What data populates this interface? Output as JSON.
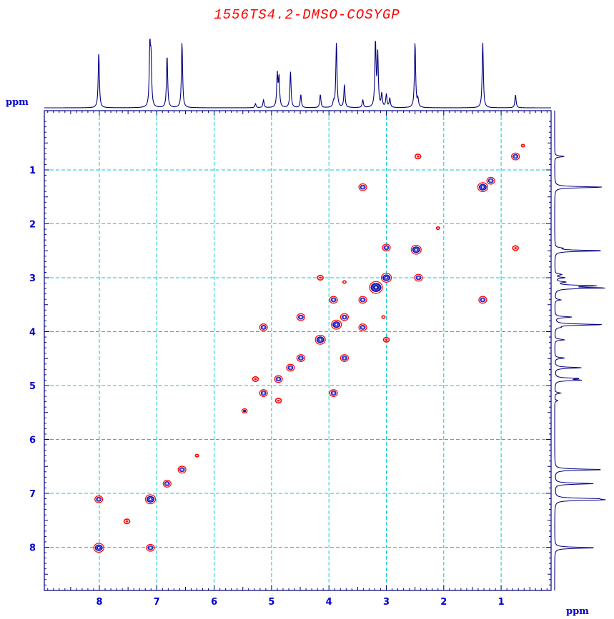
{
  "title": "1556TS4.2-DMSO-COSYGP",
  "chart_data": {
    "type": "heatmap",
    "subtype": "2D COSY NMR contour plot",
    "title": "1556TS4.2-DMSO-COSYGP",
    "x_unit_label": "ppm",
    "y_unit_label": "ppm",
    "x_axis": {
      "range": [
        0.0,
        8.9
      ],
      "reversed": true,
      "ticks": [
        8,
        7,
        6,
        5,
        4,
        3,
        2,
        1
      ]
    },
    "y_axis": {
      "range": [
        0.0,
        8.9
      ],
      "reversed": true,
      "ticks": [
        1,
        2,
        3,
        4,
        5,
        6,
        7,
        8
      ]
    },
    "grid": true,
    "colors": {
      "frame": "#000080",
      "grid": "#00cccc",
      "contour_positive": "#1a1aa8",
      "contour_negative": "#ff0000",
      "title": "#ff0000",
      "labels": "#0000cc"
    },
    "projection_peaks_ppm": [
      {
        "shift": 8.01,
        "height": 0.85
      },
      {
        "shift": 7.12,
        "height": 0.9
      },
      {
        "shift": 7.1,
        "height": 0.7
      },
      {
        "shift": 6.82,
        "height": 0.8
      },
      {
        "shift": 6.56,
        "height": 1.0
      },
      {
        "shift": 5.28,
        "height": 0.06
      },
      {
        "shift": 5.14,
        "height": 0.12
      },
      {
        "shift": 4.9,
        "height": 0.5
      },
      {
        "shift": 4.87,
        "height": 0.45
      },
      {
        "shift": 4.67,
        "height": 0.55
      },
      {
        "shift": 4.49,
        "height": 0.2
      },
      {
        "shift": 4.15,
        "height": 0.2
      },
      {
        "shift": 3.92,
        "height": 0.08
      },
      {
        "shift": 3.87,
        "height": 1.0
      },
      {
        "shift": 3.73,
        "height": 0.35
      },
      {
        "shift": 3.41,
        "height": 0.12
      },
      {
        "shift": 3.19,
        "height": 1.0
      },
      {
        "shift": 3.15,
        "height": 0.8
      },
      {
        "shift": 3.08,
        "height": 0.2
      },
      {
        "shift": 3.0,
        "height": 0.2
      },
      {
        "shift": 2.94,
        "height": 0.14
      },
      {
        "shift": 2.5,
        "height": 1.0
      },
      {
        "shift": 2.45,
        "height": 0.12
      },
      {
        "shift": 1.32,
        "height": 1.0
      },
      {
        "shift": 0.75,
        "height": 0.2
      }
    ],
    "cross_peaks": [
      {
        "x": 8.01,
        "y": 8.01,
        "kind": "diagonal",
        "size": 2
      },
      {
        "x": 7.11,
        "y": 7.11,
        "kind": "diagonal",
        "size": 2
      },
      {
        "x": 6.82,
        "y": 6.82,
        "kind": "diagonal",
        "size": 1
      },
      {
        "x": 6.56,
        "y": 6.56,
        "kind": "diagonal",
        "size": 1
      },
      {
        "x": 8.01,
        "y": 7.11,
        "kind": "cross",
        "size": 1
      },
      {
        "x": 7.11,
        "y": 8.01,
        "kind": "cross",
        "size": 1
      },
      {
        "x": 5.14,
        "y": 5.14,
        "kind": "diagonal",
        "size": 1
      },
      {
        "x": 4.88,
        "y": 4.88,
        "kind": "diagonal",
        "size": 1
      },
      {
        "x": 4.67,
        "y": 4.67,
        "kind": "diagonal",
        "size": 1
      },
      {
        "x": 4.49,
        "y": 4.49,
        "kind": "diagonal",
        "size": 1
      },
      {
        "x": 4.15,
        "y": 4.15,
        "kind": "diagonal",
        "size": 2
      },
      {
        "x": 3.87,
        "y": 3.87,
        "kind": "diagonal",
        "size": 2
      },
      {
        "x": 3.73,
        "y": 3.73,
        "kind": "diagonal",
        "size": 1
      },
      {
        "x": 3.41,
        "y": 3.41,
        "kind": "diagonal",
        "size": 1
      },
      {
        "x": 3.18,
        "y": 3.18,
        "kind": "diagonal",
        "size": 3
      },
      {
        "x": 3.0,
        "y": 3.0,
        "kind": "diagonal",
        "size": 2
      },
      {
        "x": 2.48,
        "y": 2.48,
        "kind": "diagonal",
        "size": 2
      },
      {
        "x": 1.32,
        "y": 1.32,
        "kind": "diagonal",
        "size": 2
      },
      {
        "x": 1.18,
        "y": 1.2,
        "kind": "diagonal",
        "size": 1
      },
      {
        "x": 0.75,
        "y": 0.75,
        "kind": "diagonal",
        "size": 1
      },
      {
        "x": 3.41,
        "y": 1.32,
        "kind": "cross",
        "size": 1
      },
      {
        "x": 1.32,
        "y": 3.41,
        "kind": "cross",
        "size": 1
      },
      {
        "x": 3.0,
        "y": 2.44,
        "kind": "cross",
        "size": 1
      },
      {
        "x": 2.44,
        "y": 3.0,
        "kind": "cross",
        "size": 1
      },
      {
        "x": 3.92,
        "y": 3.41,
        "kind": "cross",
        "size": 1
      },
      {
        "x": 3.41,
        "y": 3.92,
        "kind": "cross",
        "size": 1
      },
      {
        "x": 5.14,
        "y": 3.92,
        "kind": "cross",
        "size": 1
      },
      {
        "x": 3.92,
        "y": 5.14,
        "kind": "cross",
        "size": 1
      },
      {
        "x": 4.49,
        "y": 3.73,
        "kind": "cross",
        "size": 1
      },
      {
        "x": 3.73,
        "y": 4.49,
        "kind": "cross",
        "size": 1
      },
      {
        "x": 2.45,
        "y": 0.75,
        "kind": "negative",
        "size": 1
      },
      {
        "x": 0.75,
        "y": 2.45,
        "kind": "negative",
        "size": 1
      },
      {
        "x": 4.15,
        "y": 3.0,
        "kind": "negative",
        "size": 1
      },
      {
        "x": 3.0,
        "y": 4.15,
        "kind": "negative",
        "size": 1
      },
      {
        "x": 5.28,
        "y": 4.88,
        "kind": "negative",
        "size": 1
      },
      {
        "x": 4.88,
        "y": 5.28,
        "kind": "negative",
        "size": 1
      },
      {
        "x": 7.52,
        "y": 7.52,
        "kind": "negative",
        "size": 1
      },
      {
        "x": 5.47,
        "y": 5.47,
        "kind": "diagonal",
        "size": 0
      },
      {
        "x": 6.3,
        "y": 6.3,
        "kind": "negative",
        "size": 0
      },
      {
        "x": 2.1,
        "y": 2.08,
        "kind": "negative",
        "size": 0
      },
      {
        "x": 0.62,
        "y": 0.55,
        "kind": "negative",
        "size": 0
      },
      {
        "x": 3.05,
        "y": 3.73,
        "kind": "negative",
        "size": 0
      },
      {
        "x": 3.73,
        "y": 3.08,
        "kind": "negative",
        "size": 0
      }
    ]
  }
}
